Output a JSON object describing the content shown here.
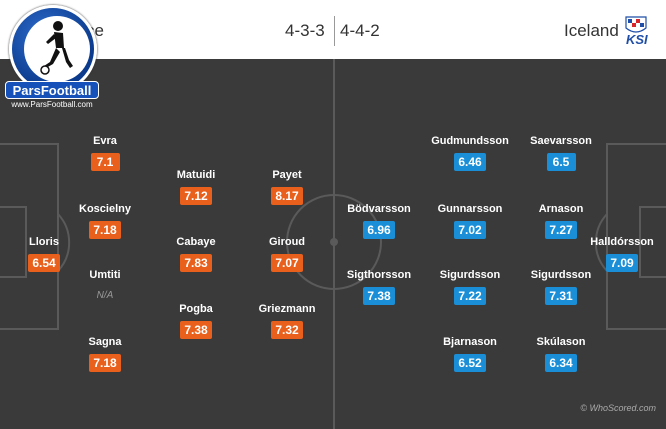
{
  "header": {
    "home_team": "ce",
    "home_formation": "4-3-3",
    "away_formation": "4-4-2",
    "away_team": "Iceland",
    "away_logo_text": "KSI"
  },
  "brand": {
    "name": "ParsFootball",
    "url": "www.ParsFootball.com"
  },
  "credit": "© WhoScored.com",
  "colors": {
    "home_rating": "#e8601c",
    "away_rating": "#1a8fd8",
    "pitch": "#3a3a3a"
  },
  "home_players": [
    {
      "name": "Lloris",
      "rating": "6.54"
    },
    {
      "name": "Evra",
      "rating": "7.1"
    },
    {
      "name": "Koscielny",
      "rating": "7.18"
    },
    {
      "name": "Umtiti",
      "rating": "N/A"
    },
    {
      "name": "Sagna",
      "rating": "7.18"
    },
    {
      "name": "Matuidi",
      "rating": "7.12"
    },
    {
      "name": "Cabaye",
      "rating": "7.83"
    },
    {
      "name": "Pogba",
      "rating": "7.38"
    },
    {
      "name": "Payet",
      "rating": "8.17"
    },
    {
      "name": "Giroud",
      "rating": "7.07"
    },
    {
      "name": "Griezmann",
      "rating": "7.32"
    }
  ],
  "away_players": [
    {
      "name": "Halldórsson",
      "rating": "7.09"
    },
    {
      "name": "Saevarsson",
      "rating": "6.5"
    },
    {
      "name": "Arnason",
      "rating": "7.27"
    },
    {
      "name": "Sigurdsson",
      "rating": "7.31"
    },
    {
      "name": "Skúlason",
      "rating": "6.34"
    },
    {
      "name": "Gudmundsson",
      "rating": "6.46"
    },
    {
      "name": "Gunnarsson",
      "rating": "7.02"
    },
    {
      "name": "Sigurdsson",
      "rating": "7.22"
    },
    {
      "name": "Bjarnason",
      "rating": "6.52"
    },
    {
      "name": "Bödvarsson",
      "rating": "6.96"
    },
    {
      "name": "Sigthorsson",
      "rating": "7.38"
    }
  ]
}
